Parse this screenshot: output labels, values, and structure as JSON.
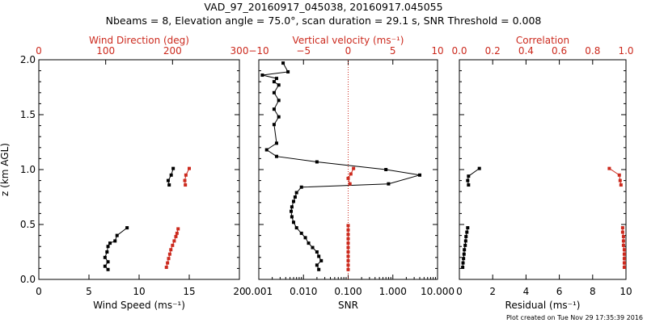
{
  "header": {
    "title": "VAD_97_20160917_045038, 20160917.045055",
    "subtitle": "Nbeams = 8, Elevation angle = 75.0°, scan duration = 29.1 s, SNR Threshold = 0.008"
  },
  "footer": {
    "created": "Plot created on Tue Nov 29 17:35:39 2016"
  },
  "colors": {
    "black": "#000000",
    "red": "#cc2a1e"
  },
  "chart_data": [
    {
      "type": "scatter",
      "ylabel": "z (km AGL)",
      "ylim": [
        0,
        2
      ],
      "y_ticks": [
        "0.0",
        "0.5",
        "1.0",
        "1.5",
        "2.0"
      ],
      "bottom_axis": {
        "label": "Wind Speed (ms⁻¹)",
        "range": [
          0,
          20
        ],
        "ticks": [
          "0",
          "5",
          "10",
          "15",
          "20"
        ]
      },
      "top_axis": {
        "label": "Wind Direction (deg)",
        "range": [
          0,
          360
        ],
        "ticks": [
          "0",
          "100",
          "200",
          "300"
        ]
      },
      "series": [
        {
          "axis": "bottom",
          "color": "#000000",
          "segments": [
            [
              [
                8.8,
                0.47
              ],
              [
                7.8,
                0.4
              ],
              [
                7.6,
                0.35
              ],
              [
                7.1,
                0.33
              ],
              [
                6.9,
                0.3
              ],
              [
                6.8,
                0.25
              ],
              [
                6.6,
                0.2
              ],
              [
                6.9,
                0.16
              ],
              [
                6.6,
                0.12
              ],
              [
                6.9,
                0.09
              ]
            ],
            [
              [
                13.4,
                1.01
              ],
              [
                13.2,
                0.95
              ],
              [
                12.9,
                0.9
              ],
              [
                13.0,
                0.86
              ]
            ]
          ]
        },
        {
          "axis": "top",
          "color": "#cc2a1e",
          "segments": [
            [
              [
                250,
                0.46
              ],
              [
                248,
                0.42
              ],
              [
                246,
                0.39
              ],
              [
                243,
                0.35
              ],
              [
                240,
                0.31
              ],
              [
                237,
                0.27
              ],
              [
                235,
                0.23
              ],
              [
                233,
                0.19
              ],
              [
                231,
                0.15
              ],
              [
                229,
                0.11
              ]
            ],
            [
              [
                270,
                1.01
              ],
              [
                264,
                0.95
              ],
              [
                262,
                0.9
              ],
              [
                263,
                0.86
              ]
            ]
          ]
        }
      ]
    },
    {
      "type": "line",
      "ylim": [
        0,
        2
      ],
      "bottom_axis": {
        "label": "SNR",
        "scale": "log",
        "range": [
          0.001,
          10
        ],
        "ticks": [
          "0.001",
          "0.010",
          "0.100",
          "1.000",
          "10.000"
        ]
      },
      "top_axis": {
        "label": "Vertical velocity (ms⁻¹)",
        "range": [
          -10,
          10
        ],
        "ticks": [
          "−10",
          "−5",
          "0",
          "5",
          "10"
        ]
      },
      "reference_line": {
        "axis": "top",
        "value": 0,
        "style": "dotted",
        "color": "#cc2a1e"
      },
      "series": [
        {
          "axis": "bottom",
          "color": "#000000",
          "points": [
            [
              0.022,
              0.09
            ],
            [
              0.02,
              0.13
            ],
            [
              0.025,
              0.17
            ],
            [
              0.022,
              0.21
            ],
            [
              0.02,
              0.25
            ],
            [
              0.016,
              0.29
            ],
            [
              0.013,
              0.33
            ],
            [
              0.011,
              0.38
            ],
            [
              0.009,
              0.42
            ],
            [
              0.007,
              0.47
            ],
            [
              0.006,
              0.52
            ],
            [
              0.0055,
              0.57
            ],
            [
              0.0053,
              0.62
            ],
            [
              0.0055,
              0.66
            ],
            [
              0.006,
              0.71
            ],
            [
              0.0065,
              0.75
            ],
            [
              0.007,
              0.79
            ],
            [
              0.009,
              0.84
            ],
            [
              0.8,
              0.87
            ],
            [
              4.0,
              0.95
            ],
            [
              0.7,
              1.0
            ],
            [
              0.02,
              1.07
            ],
            [
              0.0025,
              1.12
            ],
            [
              0.0015,
              1.18
            ],
            [
              0.0025,
              1.24
            ],
            [
              0.0022,
              1.41
            ],
            [
              0.0028,
              1.48
            ],
            [
              0.0022,
              1.55
            ],
            [
              0.0028,
              1.63
            ],
            [
              0.0022,
              1.7
            ],
            [
              0.0028,
              1.77
            ],
            [
              0.0022,
              1.8
            ],
            [
              0.0025,
              1.83
            ],
            [
              0.0012,
              1.86
            ],
            [
              0.0045,
              1.89
            ],
            [
              0.0035,
              1.97
            ]
          ]
        },
        {
          "axis": "top",
          "color": "#cc2a1e",
          "segments": [
            [
              [
                0.0,
                0.49
              ],
              [
                0.0,
                0.45
              ],
              [
                0.0,
                0.41
              ],
              [
                0.0,
                0.37
              ],
              [
                0.0,
                0.33
              ],
              [
                0.0,
                0.29
              ],
              [
                0.0,
                0.25
              ],
              [
                0.0,
                0.21
              ],
              [
                0.0,
                0.17
              ],
              [
                0.0,
                0.13
              ],
              [
                0.0,
                0.09
              ]
            ],
            [
              [
                0.6,
                1.01
              ],
              [
                0.3,
                0.96
              ],
              [
                0.0,
                0.92
              ],
              [
                0.2,
                0.87
              ]
            ]
          ]
        }
      ]
    },
    {
      "type": "scatter",
      "ylim": [
        0,
        2
      ],
      "bottom_axis": {
        "label": "Residual (ms⁻¹)",
        "range": [
          0,
          10
        ],
        "ticks": [
          "0",
          "2",
          "4",
          "6",
          "8",
          "10"
        ]
      },
      "top_axis": {
        "label": "Correlation",
        "range": [
          0,
          1
        ],
        "ticks": [
          "0.0",
          "0.2",
          "0.4",
          "0.6",
          "0.8",
          "1.0"
        ]
      },
      "series": [
        {
          "axis": "bottom",
          "color": "#000000",
          "segments": [
            [
              [
                0.5,
                0.47
              ],
              [
                0.45,
                0.43
              ],
              [
                0.4,
                0.39
              ],
              [
                0.38,
                0.35
              ],
              [
                0.35,
                0.31
              ],
              [
                0.3,
                0.27
              ],
              [
                0.28,
                0.23
              ],
              [
                0.25,
                0.19
              ],
              [
                0.22,
                0.15
              ],
              [
                0.2,
                0.11
              ]
            ],
            [
              [
                1.2,
                1.01
              ],
              [
                0.55,
                0.94
              ],
              [
                0.5,
                0.9
              ],
              [
                0.55,
                0.86
              ]
            ]
          ]
        },
        {
          "axis": "top",
          "color": "#cc2a1e",
          "segments": [
            [
              [
                0.98,
                0.47
              ],
              [
                0.98,
                0.43
              ],
              [
                0.985,
                0.39
              ],
              [
                0.985,
                0.35
              ],
              [
                0.985,
                0.31
              ],
              [
                0.99,
                0.27
              ],
              [
                0.99,
                0.23
              ],
              [
                0.99,
                0.19
              ],
              [
                0.99,
                0.15
              ],
              [
                0.99,
                0.11
              ]
            ],
            [
              [
                0.9,
                1.01
              ],
              [
                0.96,
                0.95
              ],
              [
                0.965,
                0.9
              ],
              [
                0.97,
                0.86
              ]
            ]
          ]
        }
      ]
    }
  ]
}
